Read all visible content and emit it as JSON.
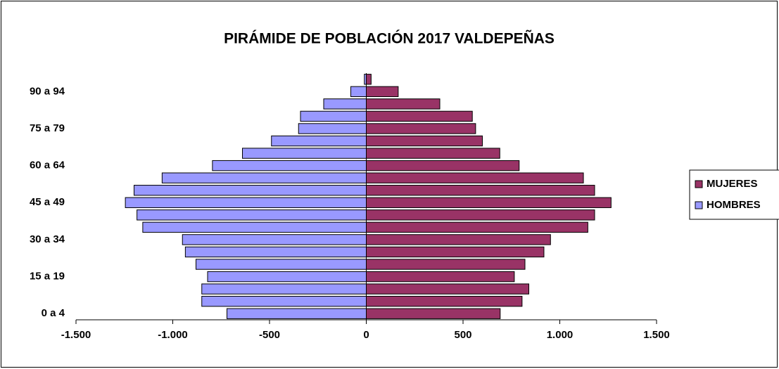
{
  "chart_data": {
    "type": "bar",
    "orientation": "horizontal",
    "stacked": true,
    "title": "PIRÁMIDE DE POBLACIÓN 2017 VALDEPEÑAS",
    "categories": [
      "0 a 4",
      null,
      null,
      "15 a 19",
      null,
      null,
      "30 a 34",
      null,
      null,
      "45 a 49",
      null,
      null,
      "60 a 64",
      null,
      null,
      "75 a 79",
      null,
      null,
      "90 a 94",
      null
    ],
    "series": [
      {
        "name": "MUJERES",
        "color": "#993366",
        "values": [
          692,
          805,
          840,
          765,
          820,
          918,
          952,
          1145,
          1180,
          1265,
          1180,
          1122,
          790,
          690,
          600,
          565,
          548,
          380,
          165,
          25
        ]
      },
      {
        "name": "HOMBRES",
        "color": "#9999ff",
        "values": [
          -720,
          -850,
          -850,
          -820,
          -880,
          -935,
          -950,
          -1155,
          -1185,
          -1245,
          -1200,
          -1055,
          -795,
          -640,
          -490,
          -350,
          -340,
          -220,
          -80,
          -10
        ]
      }
    ],
    "xlim": [
      -1500,
      1500
    ],
    "xticks": [
      {
        "value": -1500,
        "label": "-1.500"
      },
      {
        "value": -1000,
        "label": "-1.000"
      },
      -500,
      0,
      500,
      {
        "value": 1000,
        "label": "1.000"
      },
      {
        "value": 1500,
        "label": "1.500"
      }
    ],
    "legend": "right"
  }
}
